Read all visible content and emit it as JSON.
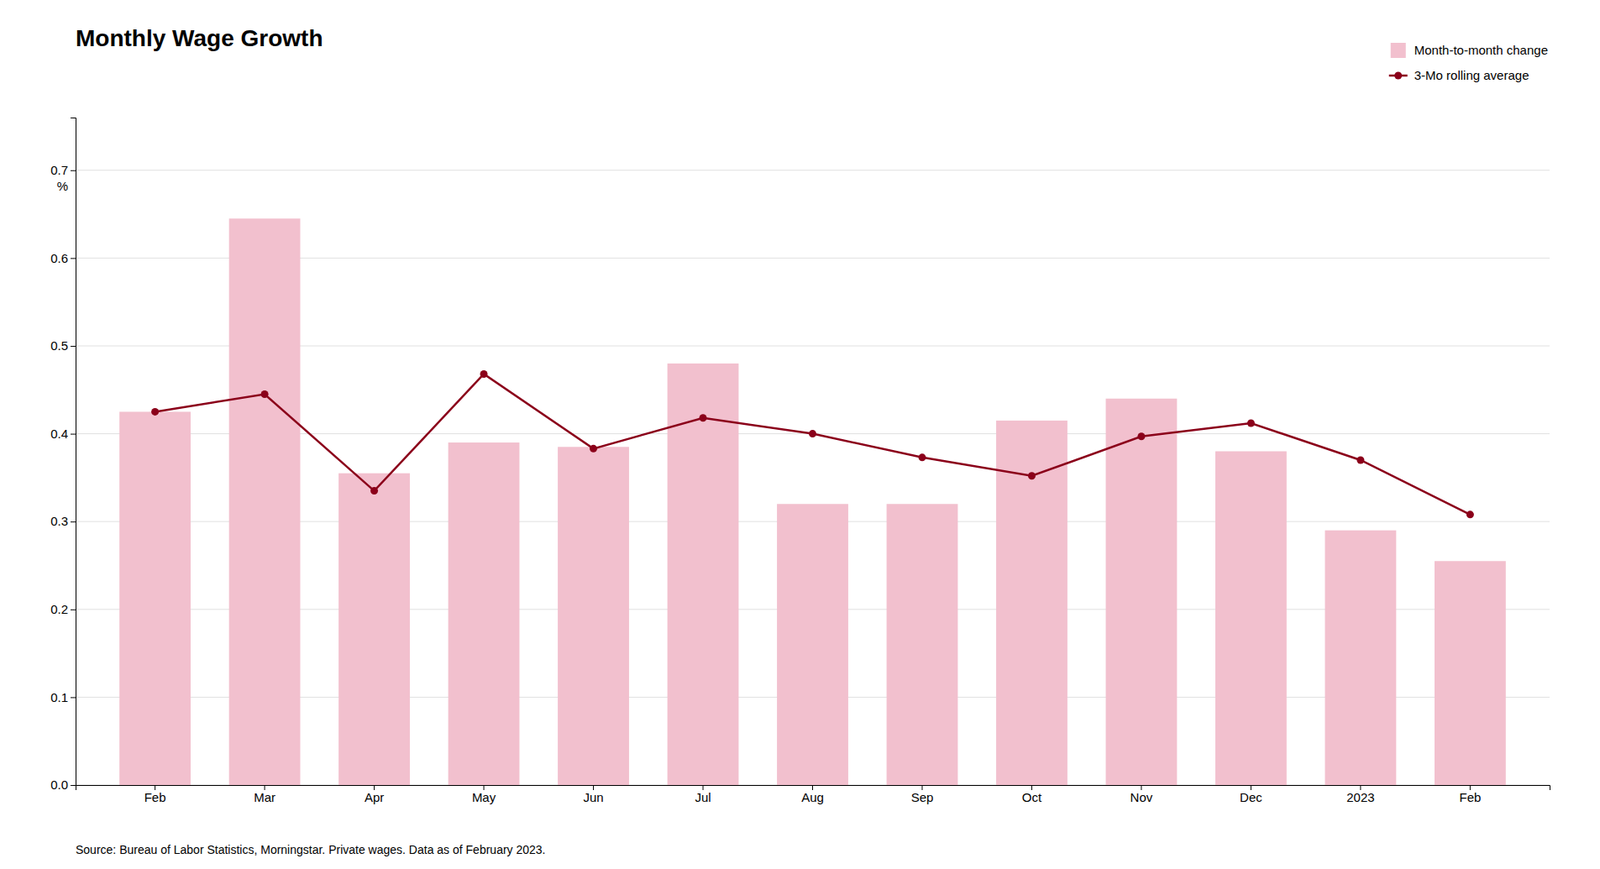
{
  "chart_data": {
    "type": "bar",
    "title": "Monthly Wage Growth",
    "source": "Source: Bureau of Labor Statistics, Morningstar. Private wages. Data as of February 2023.",
    "ylabel": "%",
    "categories": [
      "Feb",
      "Mar",
      "Apr",
      "May",
      "Jun",
      "Jul",
      "Aug",
      "Sep",
      "Oct",
      "Nov",
      "Dec",
      "2023",
      "Feb"
    ],
    "series": [
      {
        "name": "Month-to-month change",
        "type": "bar",
        "color": "#f2c0ce",
        "values": [
          0.425,
          0.645,
          0.355,
          0.39,
          0.385,
          0.48,
          0.32,
          0.32,
          0.415,
          0.44,
          0.38,
          0.29,
          0.255
        ]
      },
      {
        "name": "3-Mo rolling average",
        "type": "line",
        "color": "#8b001a",
        "marker": "circle",
        "values": [
          0.425,
          0.445,
          0.335,
          0.468,
          0.383,
          0.418,
          0.4,
          0.373,
          0.352,
          0.397,
          0.412,
          0.37,
          0.308
        ]
      }
    ],
    "ylim": [
      0.0,
      0.76
    ],
    "yticks": [
      {
        "value": 0.0,
        "label": "0.0"
      },
      0.1,
      0.2,
      0.3,
      0.4,
      0.5,
      0.6,
      0.7
    ],
    "grid": true,
    "legend": "upper-right"
  }
}
